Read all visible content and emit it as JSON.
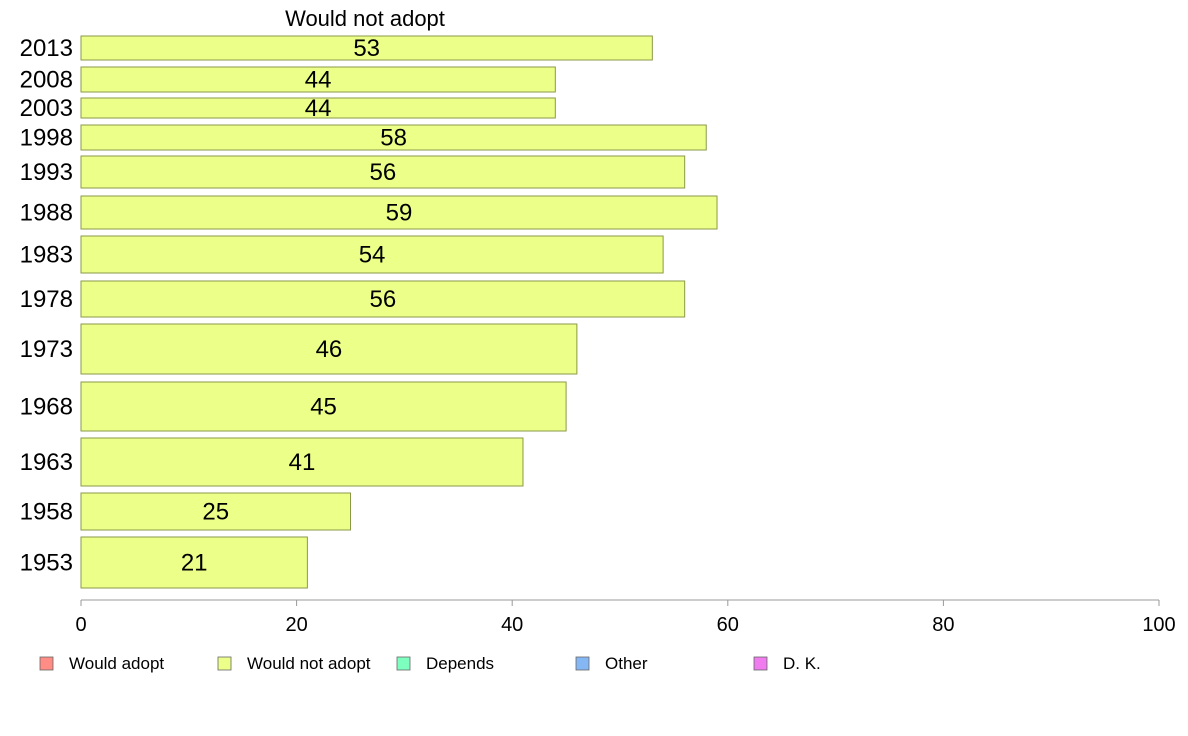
{
  "chart_data": {
    "type": "bar",
    "orientation": "horizontal",
    "title": "Would not adopt",
    "categories": [
      "2013",
      "2008",
      "2003",
      "1998",
      "1993",
      "1988",
      "1983",
      "1978",
      "1973",
      "1968",
      "1963",
      "1958",
      "1953"
    ],
    "values": [
      53,
      44,
      44,
      58,
      56,
      59,
      54,
      56,
      46,
      45,
      41,
      25,
      21
    ],
    "xlim": [
      0,
      100
    ],
    "xticks": [
      0,
      20,
      40,
      60,
      80,
      100
    ],
    "xlabel": "",
    "ylabel": "",
    "grid": false,
    "bar_color": "#ecff88",
    "bar_stroke": "#8a9a4a",
    "legend_position": "bottom",
    "legend": [
      {
        "label": "Would adopt",
        "color": "#ff8c85"
      },
      {
        "label": "Would not adopt",
        "color": "#ecff88"
      },
      {
        "label": "Depends",
        "color": "#7dffbf"
      },
      {
        "label": "Other",
        "color": "#86b7f5"
      },
      {
        "label": "D. K.",
        "color": "#f07cf0"
      }
    ]
  }
}
